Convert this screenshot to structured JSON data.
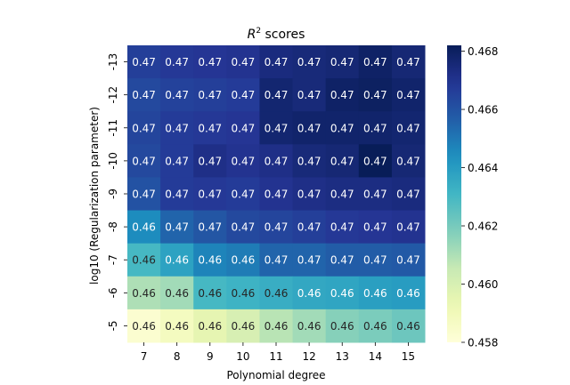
{
  "chart_data": {
    "type": "heatmap",
    "title": "R² scores",
    "xlabel": "Polynomial degree",
    "ylabel": "log10 (Regularization parameter)",
    "x_categories": [
      "7",
      "8",
      "9",
      "10",
      "11",
      "12",
      "13",
      "14",
      "15"
    ],
    "y_categories": [
      "-13",
      "-12",
      "-11",
      "-10",
      "-9",
      "-8",
      "-7",
      "-6",
      "-5"
    ],
    "values": [
      [
        0.4666,
        0.4668,
        0.4669,
        0.467,
        0.4674,
        0.4675,
        0.4676,
        0.4679,
        0.4676
      ],
      [
        0.4663,
        0.4665,
        0.4666,
        0.4667,
        0.4677,
        0.4675,
        0.4679,
        0.468,
        0.4678
      ],
      [
        0.4664,
        0.4667,
        0.4668,
        0.4669,
        0.4677,
        0.4678,
        0.4678,
        0.4678,
        0.4677
      ],
      [
        0.4663,
        0.4667,
        0.4672,
        0.467,
        0.4672,
        0.4675,
        0.4676,
        0.4682,
        0.4676
      ],
      [
        0.466,
        0.4667,
        0.4668,
        0.4667,
        0.467,
        0.4672,
        0.4673,
        0.4673,
        0.4674
      ],
      [
        0.4645,
        0.4655,
        0.4659,
        0.4663,
        0.4664,
        0.4666,
        0.4668,
        0.4669,
        0.467
      ],
      [
        0.463,
        0.4638,
        0.4647,
        0.4649,
        0.4655,
        0.4655,
        0.4657,
        0.4657,
        0.4658
      ],
      [
        0.461,
        0.4612,
        0.463,
        0.4632,
        0.4634,
        0.4636,
        0.4637,
        0.4639,
        0.464
      ],
      [
        0.4583,
        0.4588,
        0.4595,
        0.46,
        0.4608,
        0.4612,
        0.4617,
        0.4619,
        0.4622
      ]
    ],
    "cell_labels": [
      [
        "0.47",
        "0.47",
        "0.47",
        "0.47",
        "0.47",
        "0.47",
        "0.47",
        "0.47",
        "0.47"
      ],
      [
        "0.47",
        "0.47",
        "0.47",
        "0.47",
        "0.47",
        "0.47",
        "0.47",
        "0.47",
        "0.47"
      ],
      [
        "0.47",
        "0.47",
        "0.47",
        "0.47",
        "0.47",
        "0.47",
        "0.47",
        "0.47",
        "0.47"
      ],
      [
        "0.47",
        "0.47",
        "0.47",
        "0.47",
        "0.47",
        "0.47",
        "0.47",
        "0.47",
        "0.47"
      ],
      [
        "0.47",
        "0.47",
        "0.47",
        "0.47",
        "0.47",
        "0.47",
        "0.47",
        "0.47",
        "0.47"
      ],
      [
        "0.46",
        "0.47",
        "0.47",
        "0.47",
        "0.47",
        "0.47",
        "0.47",
        "0.47",
        "0.47"
      ],
      [
        "0.46",
        "0.46",
        "0.46",
        "0.46",
        "0.47",
        "0.47",
        "0.47",
        "0.47",
        "0.47"
      ],
      [
        "0.46",
        "0.46",
        "0.46",
        "0.46",
        "0.46",
        "0.46",
        "0.46",
        "0.46",
        "0.46"
      ],
      [
        "0.46",
        "0.46",
        "0.46",
        "0.46",
        "0.46",
        "0.46",
        "0.46",
        "0.46",
        "0.46"
      ]
    ],
    "colorbar": {
      "min": 0.458,
      "max": 0.4682,
      "ticks": [
        "0.458",
        "0.460",
        "0.462",
        "0.464",
        "0.466",
        "0.468"
      ],
      "colormap": "YlGnBu"
    }
  }
}
